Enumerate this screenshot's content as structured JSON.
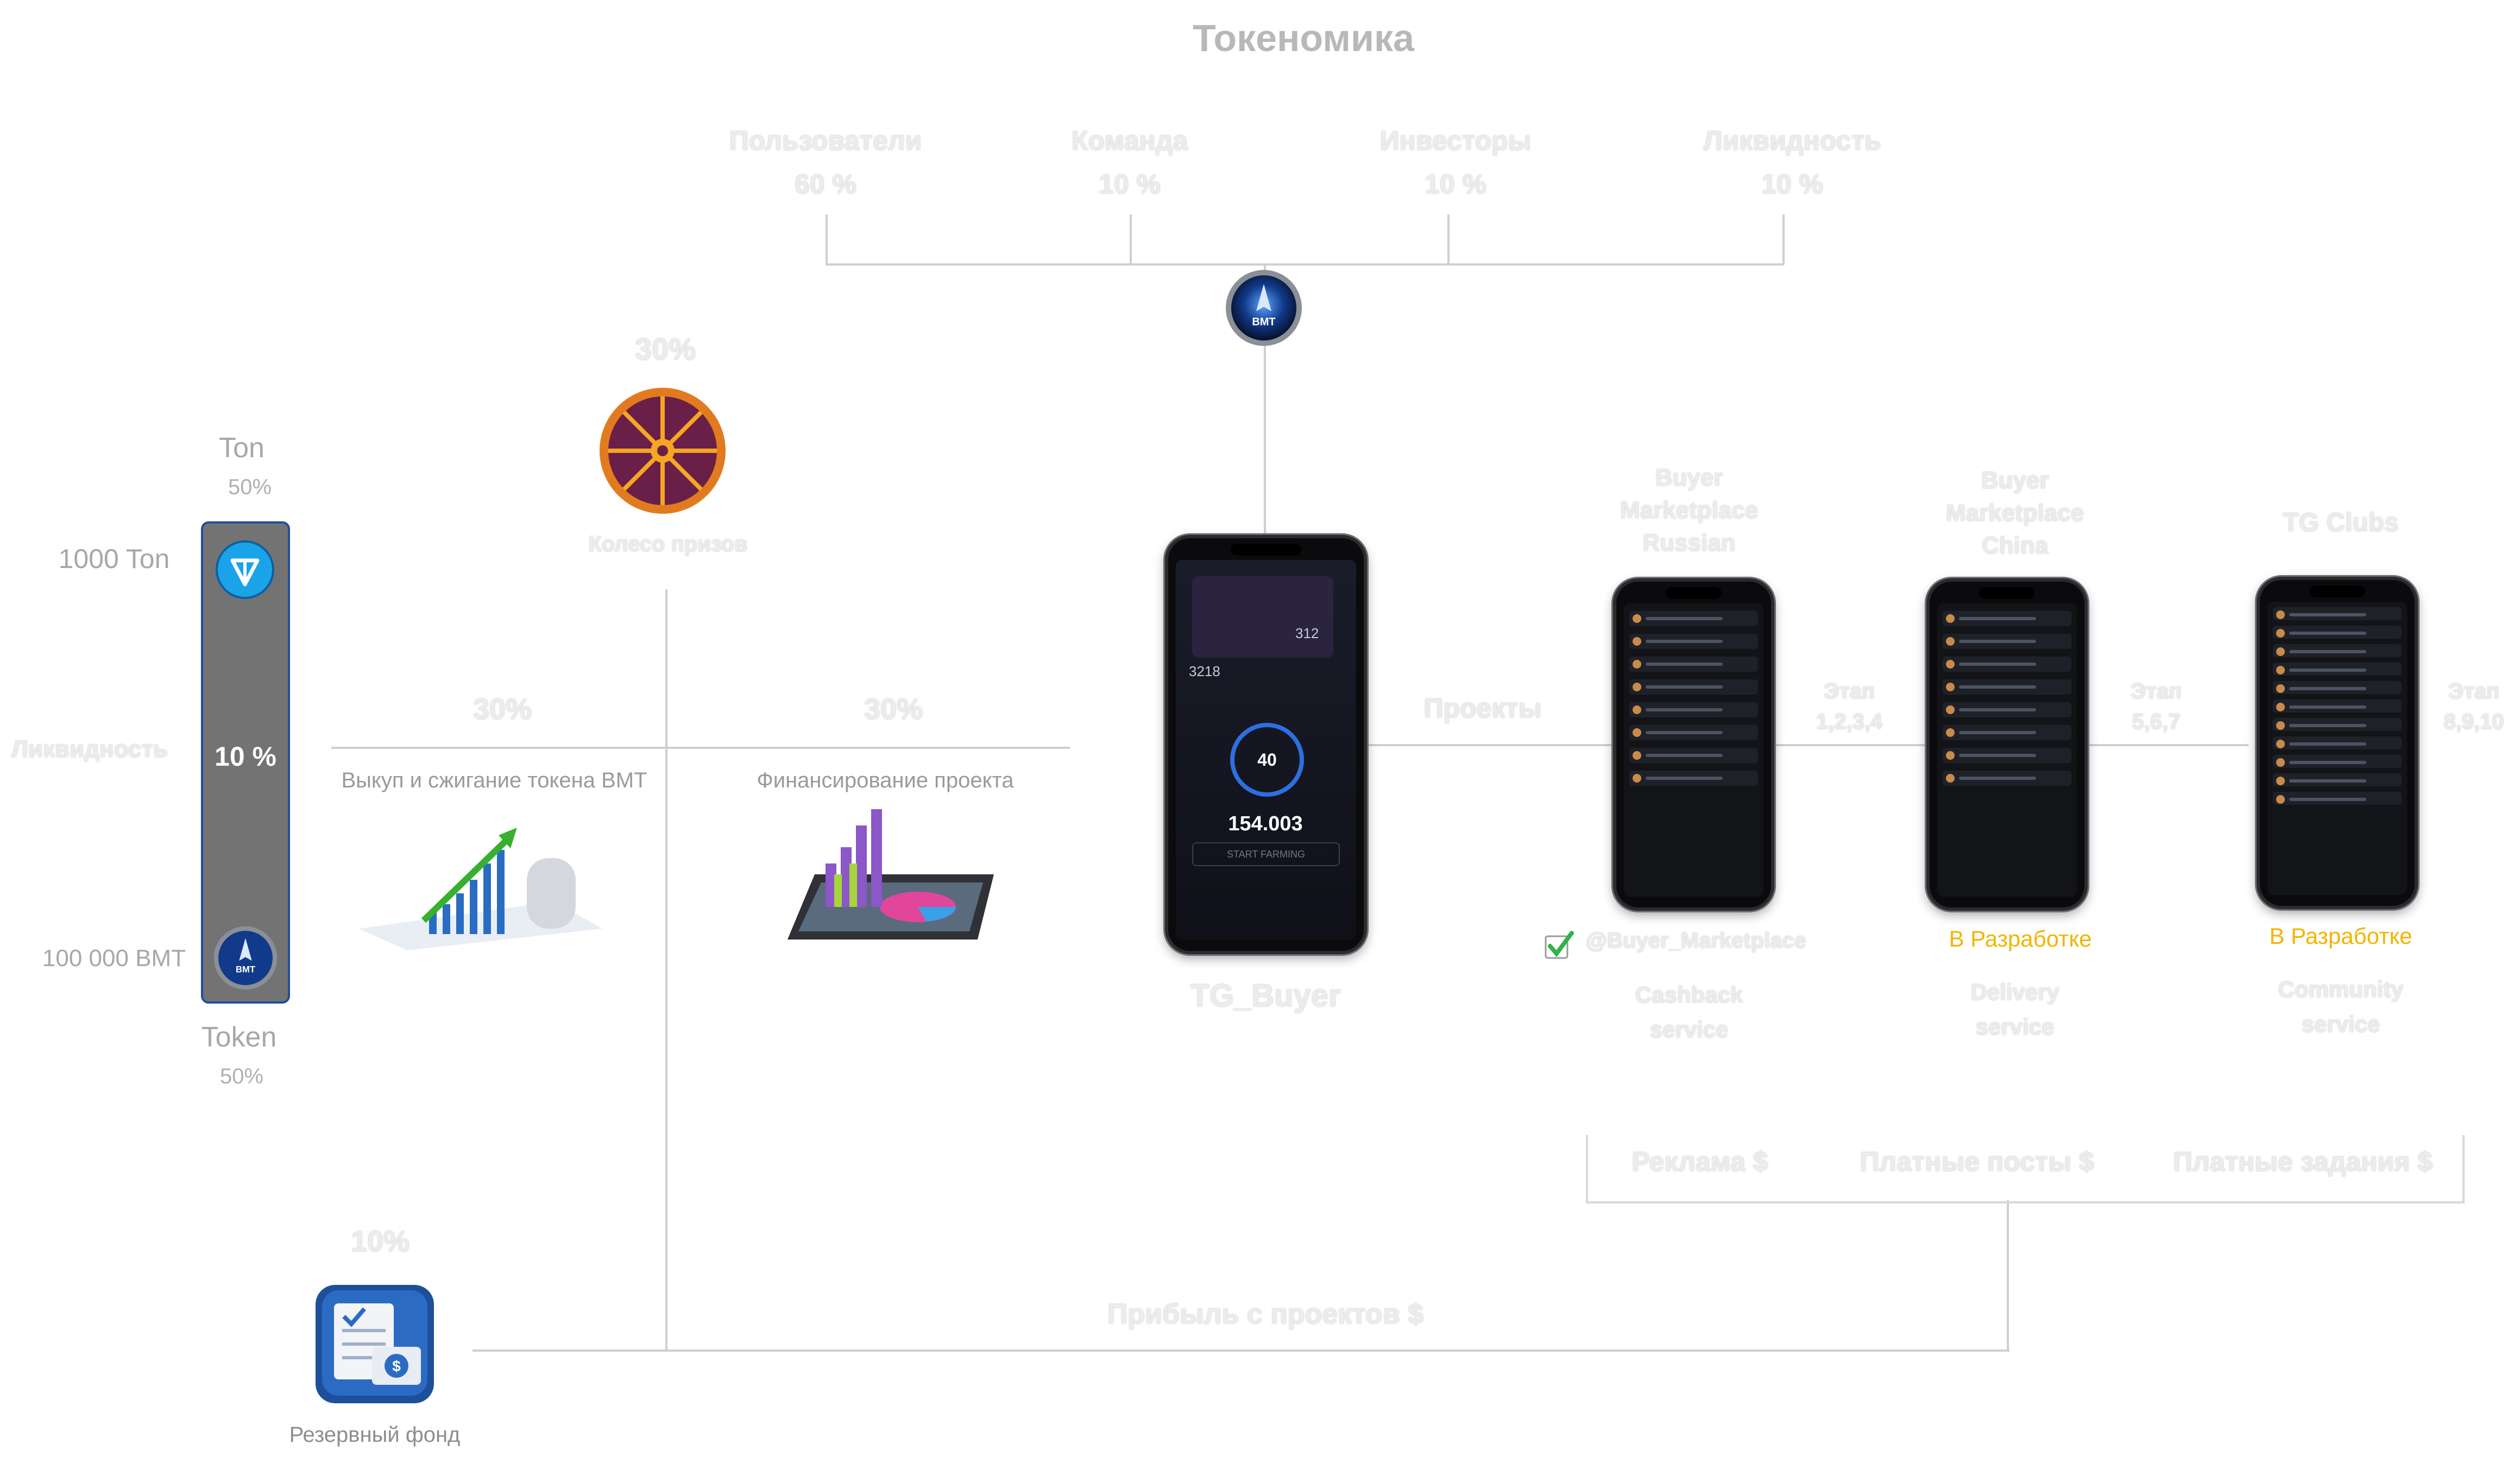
{
  "title": "Токеномика",
  "distribution": [
    {
      "label": "Пользователи",
      "value": "60 %"
    },
    {
      "label": "Команда",
      "value": "10 %"
    },
    {
      "label": "Инвесторы",
      "value": "10 %"
    },
    {
      "label": "Ликвидность",
      "value": "10 %"
    }
  ],
  "liquidity_pool": {
    "top_label": "Ton",
    "top_pct": "50%",
    "top_amount": "1000 Ton",
    "side_label": "Ликвидность",
    "center_pct": "10 %",
    "bottom_amount": "100 000 BMT",
    "bottom_label": "Token",
    "bottom_pct": "50%"
  },
  "wheel": {
    "pct": "30%",
    "label": "Колесо призов"
  },
  "buyback": {
    "pct": "30%",
    "label": "Выкуп и сжигание токена BMT"
  },
  "funding": {
    "pct": "30%",
    "label": "Финансирование  проекта"
  },
  "reserve": {
    "pct": "10%",
    "label": "Резервный фонд"
  },
  "main_app": {
    "label": "TG_Buyer",
    "balance": "154.003",
    "button": "START FARMING",
    "stat_left": "3218",
    "stat_right": "312",
    "timer": "40"
  },
  "projects_label": "Проекты",
  "projects": [
    {
      "title": "Buyer Marketplace Russian",
      "status": "@Buyer_Marketplace",
      "service": "Cashback service",
      "stage": "Этап 1,2,3,4"
    },
    {
      "title": "Buyer Marketplace China",
      "status": "В Разработке",
      "service": "Delivery service",
      "stage": "Этап 5,6,7"
    },
    {
      "title": "TG Clubs",
      "status": "В Разработке",
      "service": "Community service",
      "stage": "Этап 8,9,10"
    }
  ],
  "revenue": [
    "Реклама $",
    "Платные посты $",
    "Платные задания $"
  ],
  "profit_label": "Прибыль с проектов $",
  "colors": {
    "accent_yellow": "#f3b400",
    "check_green": "#2fb34a",
    "ton_blue": "#1aa3e8"
  },
  "icons": [
    "bmt-logo-icon",
    "ton-icon",
    "prize-wheel-icon",
    "growth-chart-icon",
    "tablet-chart-icon",
    "reserve-fund-icon",
    "checkmark-icon"
  ]
}
